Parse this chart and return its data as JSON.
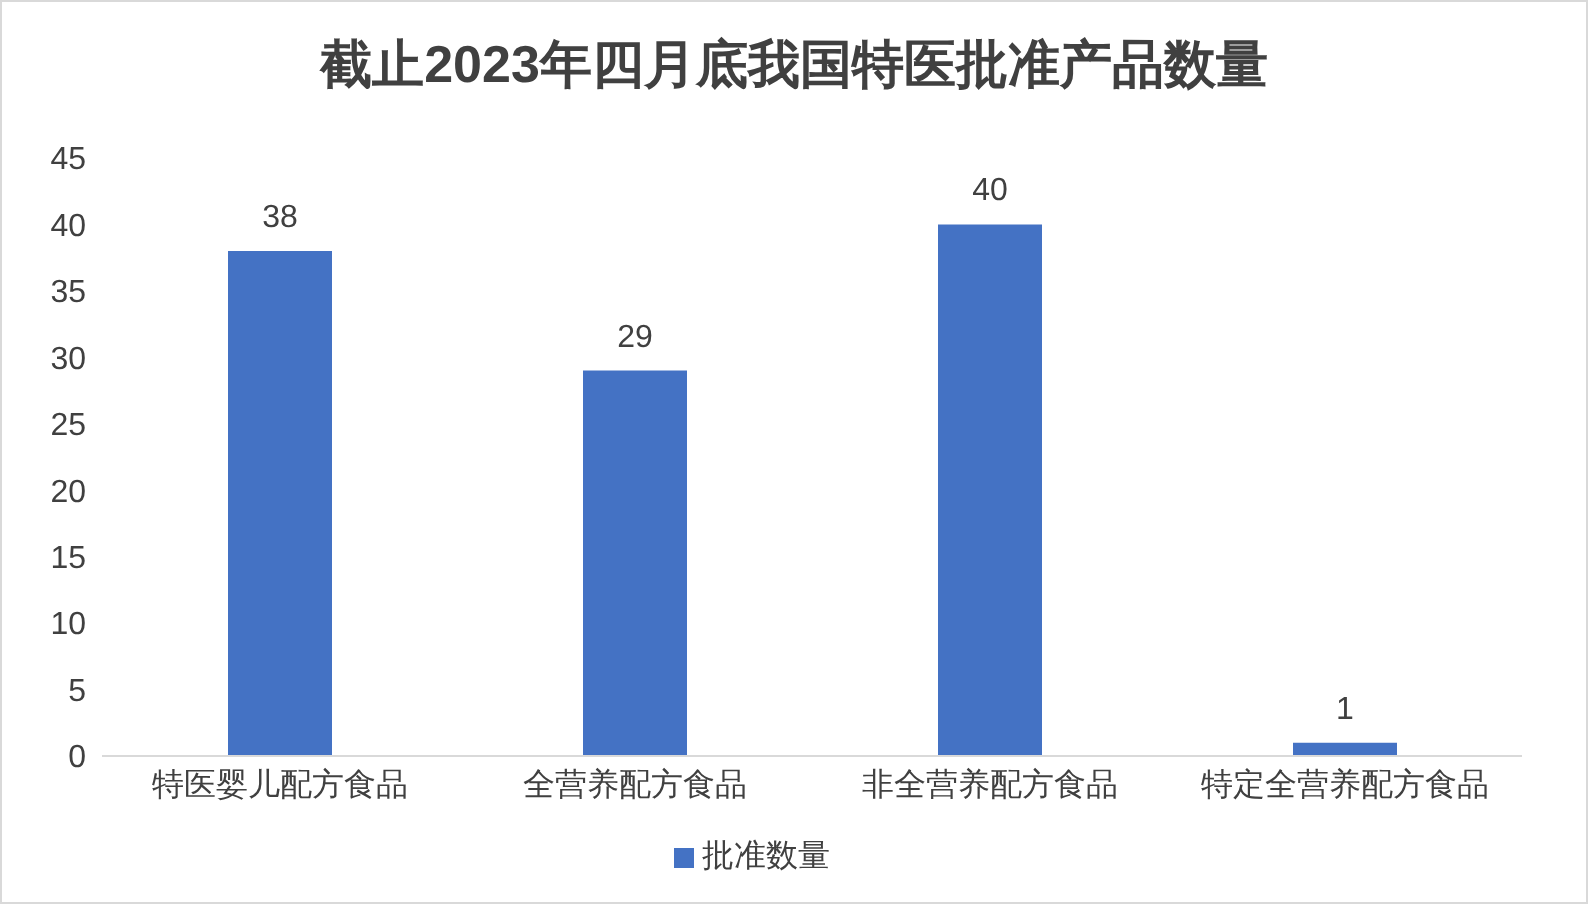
{
  "chart_data": {
    "type": "bar",
    "title": "截止2023年四月底我国特医批准产品数量",
    "categories": [
      "特医婴儿配方食品",
      "全营养配方食品",
      "非全营养配方食品",
      "特定全营养配方食品"
    ],
    "series": [
      {
        "name": "批准数量",
        "color": "#4472c4",
        "values": [
          38,
          29,
          40,
          1
        ]
      }
    ],
    "ylim": [
      0,
      45
    ],
    "yticks": [
      0,
      5,
      10,
      15,
      20,
      25,
      30,
      35,
      40,
      45
    ],
    "grid": false,
    "legend": "bottom",
    "data_labels": true
  }
}
